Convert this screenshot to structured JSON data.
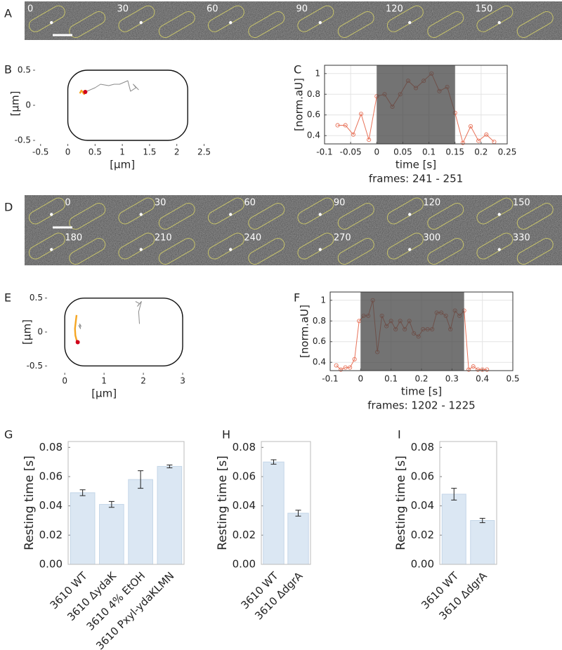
{
  "strips": [
    {
      "label": "A",
      "frames": [
        "0",
        "30",
        "60",
        "90",
        "120",
        "150"
      ]
    },
    {
      "label": "D",
      "frames": [
        "0",
        "30",
        "60",
        "90",
        "120",
        "150",
        "180",
        "210",
        "240",
        "270",
        "300",
        "330"
      ]
    }
  ],
  "chart_data": [
    {
      "type": "trajectory",
      "label": "B",
      "xlabel": "[µm]",
      "ylabel": "[µm]",
      "xlim": [
        -0.6,
        2.7
      ],
      "xticks": [
        -0.5,
        0,
        0.5,
        1,
        1.5,
        2,
        2.5
      ],
      "ylim": [
        -0.55,
        0.6
      ],
      "yticks": [
        -0.5,
        0,
        0.5
      ],
      "cell_x": [
        0,
        2.2
      ],
      "cell_y": [
        -0.5,
        0.5
      ],
      "series": [
        {
          "color": "#8a8a8a",
          "x": [
            0.35,
            0.5,
            0.6,
            0.75,
            0.85,
            0.95,
            1.1,
            1.15,
            1.25,
            1.2,
            1.3
          ],
          "values": [
            0.2,
            0.25,
            0.3,
            0.28,
            0.3,
            0.3,
            0.35,
            0.2,
            0.25,
            0.3,
            0.22
          ]
        },
        {
          "color": "#f5a623",
          "x": [
            0.22,
            0.25,
            0.28,
            0.3,
            0.27
          ],
          "values": [
            0.17,
            0.21,
            0.18,
            0.16,
            0.2
          ]
        },
        {
          "color": "#d0021b",
          "marker": true,
          "x": [
            0.32
          ],
          "values": [
            0.19
          ]
        }
      ]
    },
    {
      "type": "line",
      "label": "C",
      "xlabel": "time [s]",
      "ylabel": "[norm.aU]",
      "caption": "frames: 241 - 251",
      "xlim": [
        -0.1,
        0.25
      ],
      "xticks": [
        -0.1,
        -0.05,
        0,
        0.05,
        0.1,
        0.15,
        0.2,
        0.25
      ],
      "ylim": [
        0.32,
        1.08
      ],
      "yticks": [
        0.4,
        0.6,
        0.8,
        1
      ],
      "grid": true,
      "shade": [
        0,
        0.15
      ],
      "color": "#e8735a",
      "x": [
        -0.075,
        -0.06,
        -0.045,
        -0.03,
        -0.015,
        0,
        0.015,
        0.03,
        0.045,
        0.06,
        0.075,
        0.09,
        0.105,
        0.12,
        0.135,
        0.15,
        0.165,
        0.18,
        0.195,
        0.21,
        0.225
      ],
      "values": [
        0.5,
        0.5,
        0.41,
        0.61,
        0.36,
        0.78,
        0.8,
        0.68,
        0.8,
        0.93,
        0.86,
        0.93,
        1.0,
        0.83,
        0.87,
        0.62,
        0.33,
        0.49,
        0.35,
        0.41,
        0.34
      ]
    },
    {
      "type": "trajectory",
      "label": "E",
      "xlabel": "[µm]",
      "ylabel": "[µm]",
      "xlim": [
        -0.45,
        3.5
      ],
      "xticks": [
        0,
        1,
        2,
        3
      ],
      "ylim": [
        -0.6,
        0.6
      ],
      "yticks": [
        -0.5,
        0,
        0.5
      ],
      "cell_x": [
        0,
        3
      ],
      "cell_y": [
        -0.5,
        0.5
      ],
      "series": [
        {
          "color": "#8a8a8a",
          "x": [
            1.8,
            1.9,
            1.85,
            1.95,
            1.88,
            1.9
          ],
          "values": [
            0.45,
            0.42,
            0.38,
            0.45,
            0.3,
            0.12
          ]
        },
        {
          "color": "#8a8a8a",
          "x": [
            0.35,
            0.4,
            0.38,
            0.42
          ],
          "values": [
            0.1,
            0.05,
            0.12,
            0.08
          ]
        },
        {
          "color": "#f5a623",
          "x": [
            0.3,
            0.28,
            0.26,
            0.27,
            0.3
          ],
          "values": [
            0.25,
            0.15,
            0.05,
            -0.05,
            -0.12
          ]
        },
        {
          "color": "#d0021b",
          "x": [
            0.3,
            0.32,
            0.33
          ],
          "values": [
            -0.12,
            -0.15,
            -0.15
          ]
        },
        {
          "color": "#d0021b",
          "marker": true,
          "x": [
            0.33
          ],
          "values": [
            -0.15
          ]
        }
      ]
    },
    {
      "type": "line",
      "label": "F",
      "xlabel": "time [s]",
      "ylabel": "[norm.aU]",
      "caption": "frames: 1202 - 1225",
      "xlim": [
        -0.1,
        0.5
      ],
      "xticks": [
        -0.1,
        0,
        0.1,
        0.2,
        0.3,
        0.4,
        0.5
      ],
      "ylim": [
        0.32,
        1.08
      ],
      "yticks": [
        0.4,
        0.6,
        0.8,
        1
      ],
      "grid": true,
      "shade": [
        0,
        0.34
      ],
      "color": "#e8735a",
      "x": [
        -0.08,
        -0.065,
        -0.05,
        -0.035,
        -0.02,
        -0.005,
        0.01,
        0.025,
        0.04,
        0.055,
        0.07,
        0.085,
        0.1,
        0.115,
        0.13,
        0.145,
        0.16,
        0.175,
        0.19,
        0.205,
        0.22,
        0.235,
        0.25,
        0.265,
        0.28,
        0.295,
        0.31,
        0.325,
        0.34,
        0.355,
        0.37,
        0.385,
        0.4,
        0.415
      ],
      "values": [
        0.37,
        0.33,
        0.35,
        0.35,
        0.43,
        0.8,
        0.85,
        0.85,
        1.0,
        0.5,
        0.85,
        0.75,
        0.8,
        0.72,
        0.8,
        0.72,
        0.8,
        0.68,
        0.65,
        0.72,
        0.72,
        0.72,
        0.88,
        0.88,
        0.85,
        0.72,
        0.9,
        0.85,
        0.9,
        0.33,
        0.36,
        0.33,
        0.33,
        0.33
      ]
    },
    {
      "type": "bar",
      "label": "G",
      "ylabel": "Resting time [s]",
      "color": "#dbe7f3",
      "categories": [
        "3610 WT",
        "3610 ∆ydaK",
        "3610 4% EtOH",
        "3610 Pxyl-ydaKLMN"
      ],
      "values": [
        0.049,
        0.041,
        0.058,
        0.067
      ],
      "errors": [
        0.002,
        0.002,
        0.006,
        0.001
      ],
      "ylim": [
        0,
        0.084
      ],
      "yticks": [
        {
          "value": 0,
          "label": "0.00"
        },
        0.02,
        0.04,
        0.06,
        0.08
      ]
    },
    {
      "type": "bar",
      "label": "H",
      "ylabel": "Resting time [s]",
      "color": "#dbe7f3",
      "categories": [
        "3610 WT",
        "3610 ∆dgrA"
      ],
      "values": [
        0.07,
        0.035
      ],
      "errors": [
        0.0015,
        0.002
      ],
      "ylim": [
        0,
        0.084
      ],
      "yticks": [
        {
          "value": 0,
          "label": "0.00"
        },
        0.02,
        0.04,
        0.06,
        0.08
      ]
    },
    {
      "type": "bar",
      "label": "I",
      "ylabel": "Resting time [s]",
      "color": "#dbe7f3",
      "categories": [
        "3610 WT",
        "3610 ∆dgrA"
      ],
      "values": [
        0.048,
        0.03
      ],
      "errors": [
        0.004,
        0.0015
      ],
      "ylim": [
        0,
        0.084
      ],
      "yticks": [
        {
          "value": 0,
          "label": "0.00"
        },
        0.02,
        0.04,
        0.06,
        0.08
      ]
    }
  ]
}
